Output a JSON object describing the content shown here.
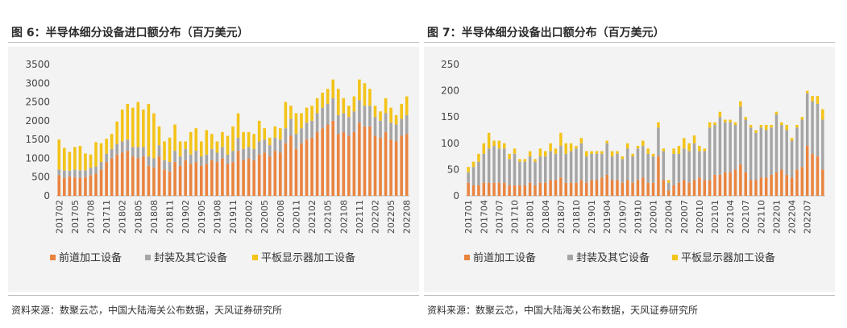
{
  "colors": {
    "front": "#e9843f",
    "pack": "#a5a5a5",
    "flat": "#f3c318"
  },
  "panels": [
    {
      "title": "图 6：半导体细分设备进口额分布（百万美元）",
      "source": "资料来源：数聚云芯，中国大陆海关公布数据，天风证券研究所"
    },
    {
      "title": "图 7：半导体细分设备出口额分布（百万美元）",
      "source": "资料来源：数聚云芯，中国大陆海关公布数据，天风证券研究所"
    }
  ],
  "chart_data": [
    {
      "type": "bar",
      "stacked": true,
      "title": "图 6：半导体细分设备进口额分布（百万美元）",
      "x_start": "201702",
      "x_end": "202208",
      "x_tick_labels": [
        "201702",
        "201705",
        "201708",
        "201711",
        "201802",
        "201805",
        "201808",
        "201811",
        "201902",
        "201905",
        "201908",
        "201911",
        "202002",
        "202005",
        "202008",
        "202011",
        "202102",
        "202105",
        "202108",
        "202111",
        "202202",
        "202205",
        "202208"
      ],
      "ylim": [
        0,
        3500
      ],
      "y_ticks": [
        0,
        500,
        1000,
        1500,
        2000,
        2500,
        3000,
        3500
      ],
      "legend": [
        "前道加工设备",
        "封装及其它设备",
        "平板显示器加工设备"
      ],
      "legend_position": "bottom",
      "series": [
        {
          "name": "前道加工设备",
          "values": [
            550,
            480,
            520,
            500,
            480,
            500,
            550,
            600,
            700,
            900,
            1000,
            1100,
            1150,
            1200,
            1050,
            1000,
            1050,
            800,
            750,
            1050,
            700,
            650,
            900,
            800,
            950,
            850,
            900,
            800,
            850,
            950,
            900,
            1000,
            850,
            900,
            1200,
            950,
            1000,
            950,
            1100,
            1150,
            1050,
            1200,
            1150,
            1400,
            1600,
            1250,
            1400,
            1500,
            1550,
            1700,
            1800,
            1900,
            2000,
            1650,
            1700,
            1600,
            1700,
            1950,
            1850,
            1850,
            1600,
            1550,
            1700,
            1500,
            1450,
            1600,
            1650
          ]
        },
        {
          "name": "封装及其它设备",
          "values": [
            150,
            200,
            150,
            200,
            200,
            180,
            200,
            180,
            200,
            220,
            250,
            280,
            300,
            300,
            250,
            300,
            250,
            250,
            250,
            300,
            250,
            250,
            300,
            250,
            300,
            250,
            300,
            250,
            250,
            300,
            250,
            300,
            250,
            300,
            350,
            300,
            300,
            300,
            350,
            350,
            300,
            350,
            350,
            400,
            450,
            400,
            400,
            450,
            450,
            500,
            550,
            550,
            600,
            500,
            500,
            500,
            550,
            600,
            550,
            550,
            500,
            450,
            500,
            450,
            450,
            450,
            500
          ]
        },
        {
          "name": "平板显示器加工设备",
          "values": [
            800,
            600,
            500,
            600,
            650,
            450,
            350,
            650,
            500,
            400,
            400,
            600,
            850,
            950,
            1050,
            1200,
            1000,
            1400,
            1200,
            500,
            500,
            650,
            700,
            400,
            200,
            600,
            600,
            400,
            650,
            400,
            300,
            400,
            500,
            650,
            650,
            450,
            400,
            400,
            550,
            300,
            200,
            300,
            300,
            700,
            350,
            550,
            400,
            400,
            400,
            400,
            400,
            400,
            500,
            700,
            400,
            300,
            400,
            550,
            600,
            450,
            300,
            250,
            400,
            400,
            250,
            400,
            500
          ]
        }
      ]
    },
    {
      "type": "bar",
      "stacked": true,
      "title": "图 7：半导体细分设备出口额分布（百万美元）",
      "x_start": "201701",
      "x_end": "202208",
      "x_tick_labels": [
        "201701",
        "201704",
        "201707",
        "201710",
        "201801",
        "201804",
        "201807",
        "201810",
        "201901",
        "201904",
        "201907",
        "201910",
        "202001",
        "202004",
        "202007",
        "202010",
        "202101",
        "202104",
        "202107",
        "202110",
        "202201",
        "202204",
        "202207"
      ],
      "ylim": [
        0,
        250
      ],
      "y_ticks": [
        0,
        50,
        100,
        150,
        200,
        250
      ],
      "legend": [
        "前道加工设备",
        "封装及其它设备",
        "平板显示器加工设备"
      ],
      "legend_position": "bottom",
      "series": [
        {
          "name": "前道加工设备",
          "values": [
            25,
            20,
            20,
            25,
            25,
            25,
            25,
            25,
            20,
            20,
            20,
            20,
            25,
            20,
            25,
            25,
            30,
            30,
            35,
            25,
            25,
            25,
            30,
            25,
            30,
            30,
            35,
            40,
            30,
            30,
            25,
            30,
            25,
            30,
            35,
            25,
            25,
            75,
            30,
            10,
            20,
            25,
            30,
            25,
            30,
            35,
            30,
            30,
            40,
            40,
            45,
            45,
            50,
            60,
            45,
            30,
            30,
            35,
            35,
            40,
            45,
            50,
            40,
            35,
            50,
            55,
            95,
            80,
            75,
            50
          ]
        },
        {
          "name": "封装及其它设备",
          "values": [
            20,
            35,
            45,
            55,
            65,
            70,
            65,
            65,
            50,
            60,
            45,
            45,
            50,
            45,
            50,
            50,
            55,
            50,
            60,
            55,
            60,
            65,
            70,
            50,
            50,
            50,
            45,
            60,
            45,
            50,
            45,
            60,
            50,
            60,
            60,
            55,
            50,
            55,
            55,
            15,
            60,
            55,
            60,
            60,
            70,
            50,
            55,
            100,
            95,
            110,
            95,
            95,
            85,
            110,
            100,
            100,
            90,
            95,
            90,
            90,
            110,
            85,
            85,
            70,
            80,
            90,
            100,
            100,
            100,
            95
          ]
        },
        {
          "name": "平板显示器加工设备",
          "values": [
            10,
            10,
            15,
            20,
            30,
            10,
            15,
            10,
            10,
            10,
            5,
            5,
            10,
            5,
            15,
            10,
            15,
            10,
            25,
            20,
            15,
            5,
            10,
            10,
            5,
            5,
            5,
            5,
            10,
            5,
            5,
            10,
            5,
            5,
            10,
            10,
            5,
            10,
            5,
            5,
            10,
            15,
            20,
            15,
            15,
            10,
            5,
            10,
            5,
            10,
            5,
            5,
            5,
            10,
            5,
            5,
            5,
            5,
            10,
            5,
            5,
            5,
            10,
            5,
            5,
            5,
            5,
            10,
            15,
            20
          ]
        }
      ]
    }
  ]
}
